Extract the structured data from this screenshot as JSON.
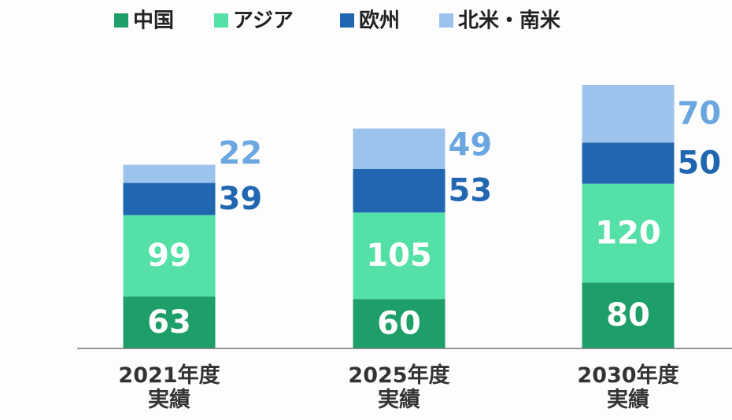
{
  "chart_data": {
    "type": "stacked_bar",
    "categories": [
      "2021年度\n実績",
      "2025年度\n実績",
      "2030年度\n実績"
    ],
    "series": [
      {
        "name": "中国",
        "color": "#1e9e68",
        "values": [
          63,
          60,
          80
        ]
      },
      {
        "name": "アジア",
        "color": "#55e0a8",
        "values": [
          99,
          105,
          120
        ]
      },
      {
        "name": "欧州",
        "color": "#2166b0",
        "values": [
          39,
          53,
          50
        ]
      },
      {
        "name": "北米・南米",
        "color": "#9cc3ec",
        "values": [
          22,
          49,
          70
        ]
      }
    ]
  }
}
